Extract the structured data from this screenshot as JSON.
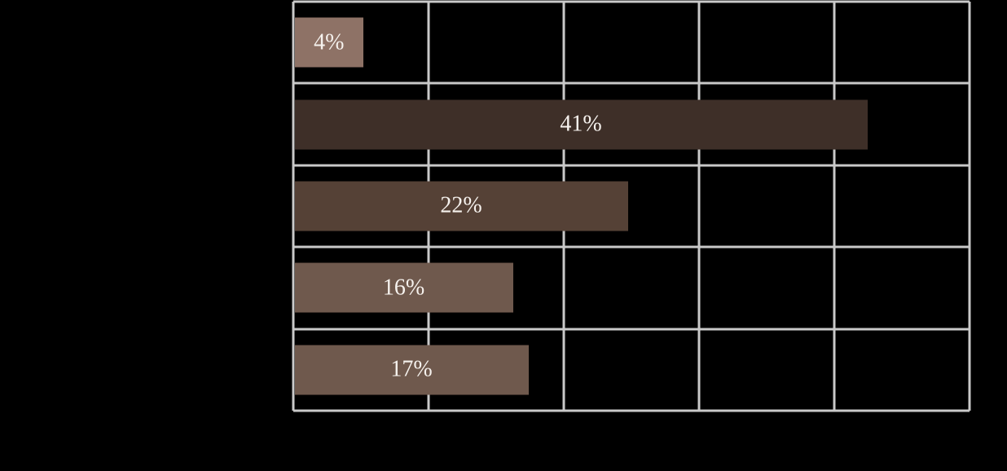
{
  "page": {
    "background_color": "#000000",
    "visible_text_note": "only bar value labels are visible; category and axis labels are not rendered in the pixels"
  },
  "chart_data": {
    "type": "bar",
    "orientation": "horizontal",
    "title": "",
    "xlabel": "",
    "ylabel": "",
    "values": [
      4,
      41,
      22,
      16,
      17
    ],
    "value_labels": [
      "4%",
      "41%",
      "22%",
      "16%",
      "17%"
    ],
    "xlim": [
      0,
      50
    ],
    "gridline_step_pct": 10,
    "grid": "on",
    "legend": "none",
    "gridline_color": "#C9C9C9",
    "value_label_color": "#F6F2EE",
    "bars": [
      {
        "label": "4%",
        "value": 4,
        "frac": 0.102,
        "color": "#8E7266"
      },
      {
        "label": "41%",
        "value": 41,
        "frac": 0.847,
        "color": "#3E2F28"
      },
      {
        "label": "22%",
        "value": 22,
        "frac": 0.493,
        "color": "#554136"
      },
      {
        "label": "16%",
        "value": 16,
        "frac": 0.323,
        "color": "#6F594D"
      },
      {
        "label": "17%",
        "value": 17,
        "frac": 0.346,
        "color": "#6F594D"
      }
    ]
  }
}
